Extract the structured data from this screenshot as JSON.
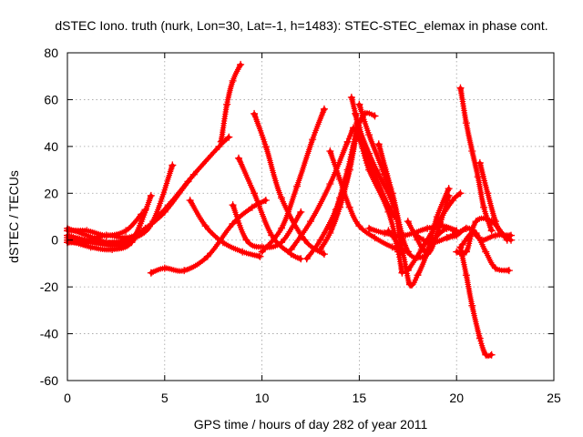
{
  "chart_data": {
    "type": "scatter",
    "title": "dSTEC Iono. truth (nurk, Lon=30, Lat=-1, h=1483): STEC-STEC_elemax in phase cont.",
    "xlabel": "GPS time / hours of day 282 of year 2011",
    "ylabel": "dSTEC  / TECUs",
    "xlim": [
      0,
      25
    ],
    "ylim": [
      -60,
      80
    ],
    "xticks": [
      0,
      5,
      10,
      15,
      20,
      25
    ],
    "yticks": [
      -60,
      -40,
      -20,
      0,
      20,
      40,
      60,
      80
    ],
    "grid": true,
    "marker": "+",
    "color": "#ff0000",
    "series": [
      {
        "x": [
          0.0,
          1.0,
          2.0,
          2.8,
          3.5,
          4.3
        ],
        "y": [
          5,
          2,
          -1,
          -2,
          2,
          19
        ]
      },
      {
        "x": [
          0.0,
          1.2,
          2.5,
          3.5,
          4.4,
          5.4
        ],
        "y": [
          1,
          -1,
          -2,
          1,
          8,
          32
        ]
      },
      {
        "x": [
          0.0,
          1.0,
          2.0,
          3.0,
          4.0,
          5.0,
          6.2
        ],
        "y": [
          -1,
          -1,
          -1,
          0,
          5,
          12,
          25
        ]
      },
      {
        "x": [
          0.0,
          1.2,
          2.3,
          3.3,
          4.0
        ],
        "y": [
          0,
          -3,
          -4,
          -1,
          13
        ]
      },
      {
        "x": [
          0.0,
          1.0,
          2.0,
          3.0,
          3.8
        ],
        "y": [
          4,
          4,
          2,
          4,
          11
        ]
      },
      {
        "x": [
          0.0,
          1.5,
          2.5,
          3.8,
          5.2,
          6.5,
          7.8,
          8.3
        ],
        "y": [
          2,
          -1,
          -2,
          3,
          15,
          28,
          40,
          44
        ]
      },
      {
        "x": [
          0.0,
          1.0,
          2.0,
          3.0,
          3.8
        ],
        "y": [
          -1,
          0,
          2,
          1,
          3
        ]
      },
      {
        "x": [
          6.3,
          7.1,
          8.0,
          9.0,
          9.9
        ],
        "y": [
          17,
          6,
          -1,
          -5,
          -7
        ]
      },
      {
        "x": [
          7.9,
          8.2,
          8.5,
          8.9
        ],
        "y": [
          42,
          58,
          68,
          75
        ]
      },
      {
        "x": [
          4.3,
          5.0,
          6.0,
          7.2,
          8.5,
          9.5,
          10.2
        ],
        "y": [
          -14,
          -12,
          -13,
          -7,
          7,
          14,
          17
        ]
      },
      {
        "x": [
          8.5,
          9.2,
          10.0,
          11.0,
          12.0
        ],
        "y": [
          15,
          0,
          -3,
          -1,
          12
        ]
      },
      {
        "x": [
          8.8,
          9.6,
          10.5,
          11.5,
          12.0
        ],
        "y": [
          35,
          20,
          2,
          -6,
          -8
        ]
      },
      {
        "x": [
          9.6,
          10.2,
          11.0,
          12.2,
          13.2
        ],
        "y": [
          54,
          40,
          18,
          0,
          -6
        ]
      },
      {
        "x": [
          10.0,
          11.0,
          11.8,
          12.6,
          13.2
        ],
        "y": [
          -5,
          5,
          23,
          43,
          56
        ]
      },
      {
        "x": [
          11.5,
          12.5,
          13.5,
          14.4,
          14.7
        ],
        "y": [
          -4,
          8,
          24,
          42,
          48
        ]
      },
      {
        "x": [
          12.3,
          13.0,
          13.8,
          14.5,
          14.9,
          15.3,
          15.8
        ],
        "y": [
          -8,
          0,
          13,
          30,
          47,
          54,
          53
        ]
      },
      {
        "x": [
          13.0,
          13.5,
          14.0,
          14.5,
          14.9
        ],
        "y": [
          -4,
          3,
          14,
          30,
          50
        ]
      },
      {
        "x": [
          13.5,
          14.0,
          14.4,
          14.9,
          15.5,
          16.5,
          17.0,
          17.2
        ],
        "y": [
          5,
          18,
          30,
          44,
          30,
          12,
          -5,
          -14
        ]
      },
      {
        "x": [
          13.5,
          14.0,
          14.5,
          15.0,
          15.8,
          16.7,
          17.5
        ],
        "y": [
          38,
          26,
          14,
          6,
          1,
          -3,
          -5
        ]
      },
      {
        "x": [
          14.6,
          15.0,
          15.5,
          16.0,
          16.5,
          16.8
        ],
        "y": [
          61,
          48,
          37,
          28,
          20,
          14
        ]
      },
      {
        "x": [
          14.8,
          15.2,
          15.8,
          16.3,
          16.8
        ],
        "y": [
          54,
          40,
          28,
          18,
          10
        ]
      },
      {
        "x": [
          15.0,
          15.5,
          16.2,
          16.8,
          17.2
        ],
        "y": [
          58,
          45,
          30,
          15,
          -5
        ]
      },
      {
        "x": [
          16.0,
          16.7,
          17.5,
          18.5,
          19.0,
          19.6
        ],
        "y": [
          41,
          20,
          -5,
          -6,
          3,
          19
        ]
      },
      {
        "x": [
          15.5,
          16.3,
          17.3,
          18.5,
          19.3,
          20.0
        ],
        "y": [
          5,
          3,
          2,
          5,
          6,
          4
        ]
      },
      {
        "x": [
          16.5,
          17.2,
          17.6,
          18.0,
          18.5,
          19.0,
          19.6
        ],
        "y": [
          4,
          -5,
          -19,
          -15,
          -5,
          10,
          22
        ]
      },
      {
        "x": [
          17.5,
          18.0,
          18.4,
          18.8,
          19.5,
          20.0
        ],
        "y": [
          8,
          0,
          -5,
          0,
          5,
          3
        ]
      },
      {
        "x": [
          17.5,
          18.2,
          19.0,
          19.8,
          20.2
        ],
        "y": [
          -13,
          -4,
          7,
          17,
          20
        ]
      },
      {
        "x": [
          17.8,
          18.3,
          18.8,
          19.5,
          20.5
        ],
        "y": [
          3,
          0,
          -1,
          1,
          5
        ]
      },
      {
        "x": [
          19.5,
          20.0,
          20.5,
          21.0,
          21.5,
          22.0,
          22.7
        ],
        "y": [
          1,
          2,
          5,
          3,
          -5,
          -12,
          -13
        ]
      },
      {
        "x": [
          20.0,
          20.5,
          21.0,
          21.8,
          22.6
        ],
        "y": [
          -5,
          -5,
          8,
          8,
          0
        ]
      },
      {
        "x": [
          20.2,
          20.5,
          20.8,
          21.1,
          21.4,
          21.8
        ],
        "y": [
          65,
          50,
          38,
          27,
          14,
          4
        ]
      },
      {
        "x": [
          20.2,
          20.5,
          20.8,
          21.2,
          21.5,
          21.8
        ],
        "y": [
          -3,
          -15,
          -28,
          -42,
          -49,
          -49
        ]
      },
      {
        "x": [
          21.2,
          21.6,
          22.0,
          22.3,
          22.8
        ],
        "y": [
          33,
          20,
          8,
          3,
          0
        ]
      },
      {
        "x": [
          20.3,
          20.8,
          21.3,
          22.0,
          22.8
        ],
        "y": [
          -2,
          3,
          0,
          2,
          2
        ]
      }
    ]
  }
}
